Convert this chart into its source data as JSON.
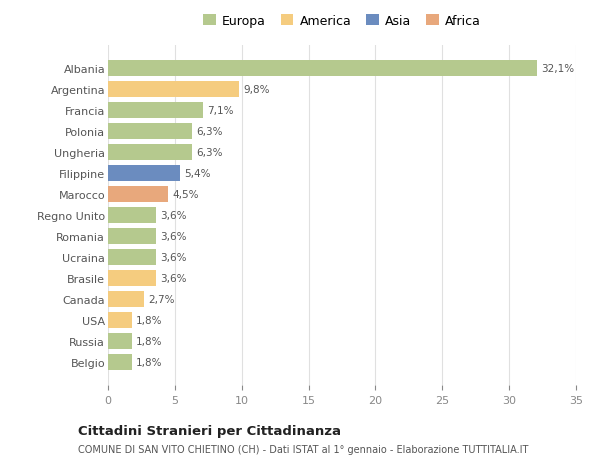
{
  "countries": [
    "Albania",
    "Argentina",
    "Francia",
    "Polonia",
    "Ungheria",
    "Filippine",
    "Marocco",
    "Regno Unito",
    "Romania",
    "Ucraina",
    "Brasile",
    "Canada",
    "USA",
    "Russia",
    "Belgio"
  ],
  "values": [
    32.1,
    9.8,
    7.1,
    6.3,
    6.3,
    5.4,
    4.5,
    3.6,
    3.6,
    3.6,
    3.6,
    2.7,
    1.8,
    1.8,
    1.8
  ],
  "labels": [
    "32,1%",
    "9,8%",
    "7,1%",
    "6,3%",
    "6,3%",
    "5,4%",
    "4,5%",
    "3,6%",
    "3,6%",
    "3,6%",
    "3,6%",
    "2,7%",
    "1,8%",
    "1,8%",
    "1,8%"
  ],
  "categories": [
    "Europa",
    "America",
    "Europa",
    "Europa",
    "Europa",
    "Asia",
    "Africa",
    "Europa",
    "Europa",
    "Europa",
    "America",
    "America",
    "America",
    "Europa",
    "Europa"
  ],
  "colors": {
    "Europa": "#b5c98e",
    "America": "#f5cc7f",
    "Asia": "#6b8cbf",
    "Africa": "#e8a87c"
  },
  "legend_order": [
    "Europa",
    "America",
    "Asia",
    "Africa"
  ],
  "title": "Cittadini Stranieri per Cittadinanza",
  "subtitle": "COMUNE DI SAN VITO CHIETINO (CH) - Dati ISTAT al 1° gennaio - Elaborazione TUTTITALIA.IT",
  "xlim": [
    0,
    35
  ],
  "xticks": [
    0,
    5,
    10,
    15,
    20,
    25,
    30,
    35
  ],
  "bg_color": "#ffffff",
  "grid_color": "#e0e0e0"
}
